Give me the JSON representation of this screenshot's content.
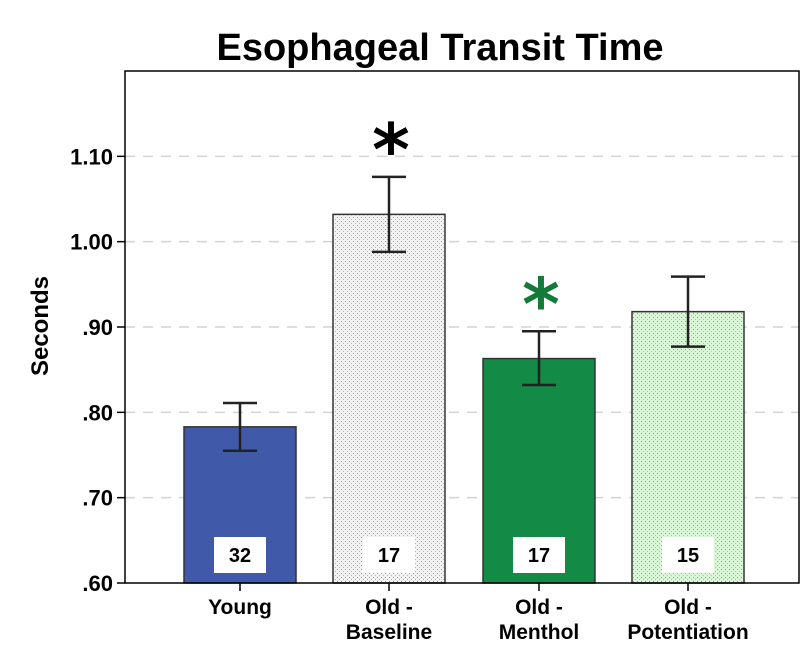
{
  "chart_data": {
    "type": "bar",
    "title": "Esophageal Transit Time",
    "ylabel": "Seconds",
    "xlabel": "",
    "ylim": [
      0.6,
      1.2
    ],
    "yticks": [
      0.6,
      0.7,
      0.8,
      0.9,
      1.0,
      1.1
    ],
    "ytick_labels": [
      ".60",
      ".70",
      ".80",
      ".90",
      "1.00",
      "1.10"
    ],
    "grid": "horizontal dashed",
    "categories": [
      {
        "lines": [
          "Young"
        ]
      },
      {
        "lines": [
          "Old -",
          "Baseline"
        ]
      },
      {
        "lines": [
          "Old -",
          "Menthol"
        ]
      },
      {
        "lines": [
          "Old -",
          "Potentiation"
        ]
      }
    ],
    "values": [
      0.783,
      1.032,
      0.863,
      0.918
    ],
    "error_low": [
      0.755,
      0.988,
      0.832,
      0.877
    ],
    "error_high": [
      0.811,
      1.076,
      0.895,
      0.959
    ],
    "n_labels": [
      "32",
      "17",
      "17",
      "15"
    ],
    "bar_fills": [
      "#4059a9",
      "#f2f2f2",
      "#138a45",
      "#d9f7d6"
    ],
    "bar_patterns": [
      false,
      true,
      false,
      true
    ],
    "significance": [
      {
        "index": 1,
        "symbol": "*",
        "color": "#000000"
      },
      {
        "index": 2,
        "symbol": "*",
        "color": "#137a3a"
      }
    ]
  }
}
